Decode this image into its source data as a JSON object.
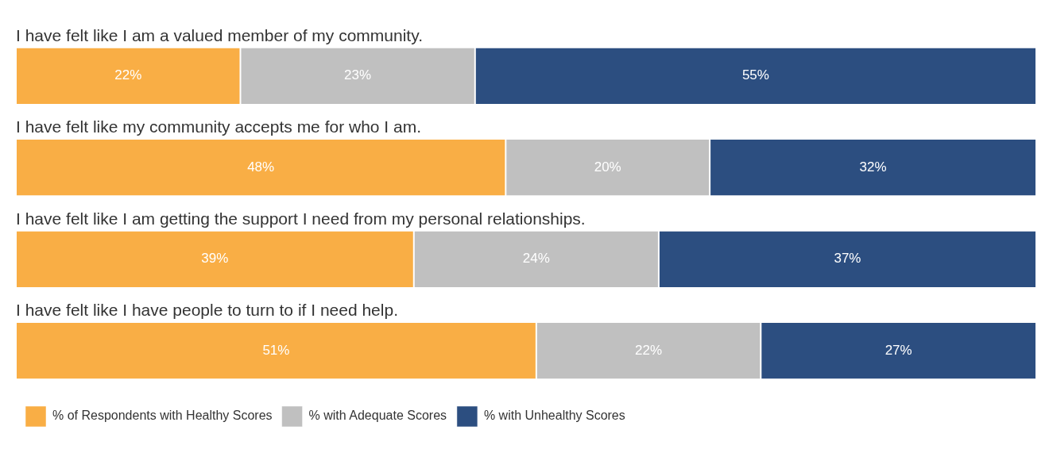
{
  "chart_data": {
    "type": "bar",
    "orientation": "horizontal",
    "stacked": true,
    "legend": "bottom left",
    "categories": [
      "I have felt like I am a valued member of my community.",
      "I have felt like my community accepts me for who I am.",
      "I have felt like I am getting the support I need from my personal relationships.",
      "I have felt like I have people to turn to if I need help."
    ],
    "series": [
      {
        "name": "% of Respondents with Healthy Scores",
        "color": "#f9ae45",
        "values": [
          22,
          48,
          39,
          51
        ],
        "value_labels": [
          "22%",
          "48%",
          "39%",
          "51%"
        ]
      },
      {
        "name": "% with Adequate Scores",
        "color": "#c0c0c0",
        "values": [
          23,
          20,
          24,
          22
        ],
        "value_labels": [
          "23%",
          "20%",
          "24%",
          "22%"
        ]
      },
      {
        "name": "% with Unhealthy Scores",
        "color": "#2c4e80",
        "values": [
          55,
          32,
          37,
          27
        ],
        "value_labels": [
          "55%",
          "32%",
          "37%",
          "27%"
        ]
      }
    ]
  }
}
